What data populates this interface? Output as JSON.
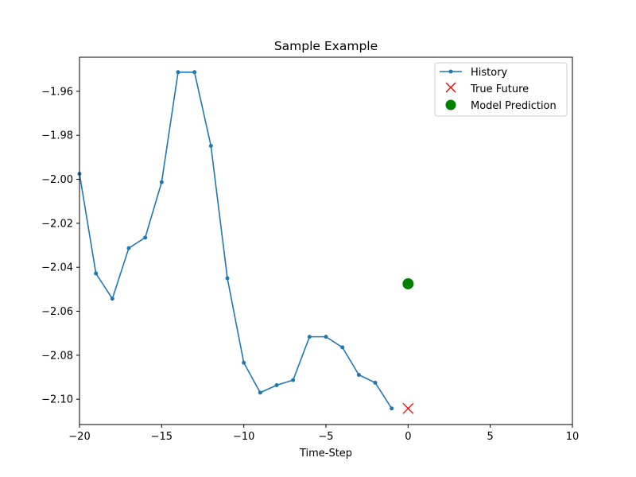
{
  "chart_data": {
    "type": "line",
    "title": "Sample Example",
    "xlabel": "Time-Step",
    "ylabel": "",
    "xlim": [
      -20,
      10
    ],
    "ylim": [
      -2.1115,
      -1.9445
    ],
    "xticks": [
      -20,
      -15,
      -10,
      -5,
      0,
      5,
      10
    ],
    "xtick_labels": [
      "−20",
      "−15",
      "−10",
      "−5",
      "0",
      "5",
      "10"
    ],
    "yticks": [
      -2.1,
      -2.08,
      -2.06,
      -2.04,
      -2.02,
      -2.0,
      -1.98,
      -1.96
    ],
    "ytick_labels": [
      "−2.10",
      "−2.08",
      "−2.06",
      "−2.04",
      "−2.02",
      "−2.00",
      "−1.98",
      "−1.96"
    ],
    "grid": false,
    "legend_position": "top-right",
    "series": [
      {
        "name": "History",
        "marker": "dot-line",
        "color": "#1f77b4",
        "x": [
          -20,
          -19,
          -18,
          -17,
          -16,
          -15,
          -14,
          -13,
          -12,
          -11,
          -10,
          -9,
          -8,
          -7,
          -6,
          -5,
          -4,
          -3,
          -2,
          -1
        ],
        "y": [
          -1.9975,
          -2.0428,
          -2.0543,
          -2.0313,
          -2.0265,
          -2.0013,
          -1.9513,
          -1.9513,
          -1.9848,
          -2.045,
          -2.0834,
          -2.097,
          -2.0936,
          -2.0913,
          -2.0716,
          -2.0716,
          -2.0764,
          -2.0889,
          -2.0925,
          -2.1042
        ]
      },
      {
        "name": "True Future",
        "marker": "x",
        "color": "#ff0000",
        "x": [
          0
        ],
        "y": [
          -2.1042
        ]
      },
      {
        "name": "Model Prediction",
        "marker": "circle",
        "color": "#008000",
        "x": [
          0
        ],
        "y": [
          -2.0475
        ]
      }
    ]
  }
}
